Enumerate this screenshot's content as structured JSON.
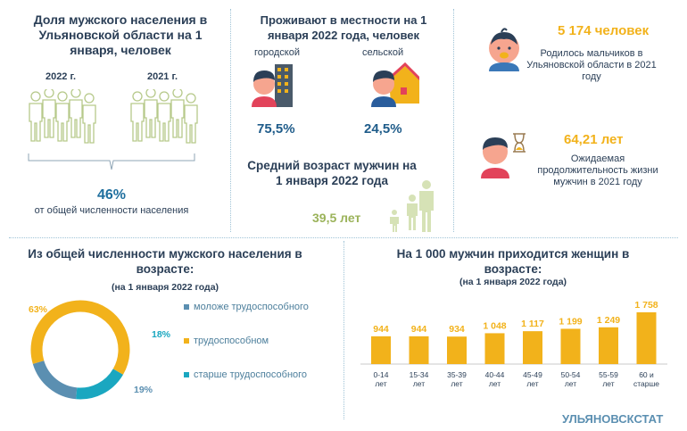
{
  "panel1": {
    "title": "Доля мужского населения в Ульяновской области на 1 января, человек",
    "year_a": "2022 г.",
    "year_b": "2021 г.",
    "percent": "46%",
    "caption": "от общей численности населения"
  },
  "panel2": {
    "title": "Проживают в местности на 1 января 2022 года,  человек",
    "urban_label": "городской",
    "rural_label": "сельской",
    "urban_value": "75,5%",
    "rural_value": "24,5%",
    "age_title": "Средний возраст мужчин на 1 января 2022 года",
    "age_value": "39,5 лет"
  },
  "panel3": {
    "births_value": "5 174 человек",
    "births_caption": "Родилось мальчиков в Ульяновской области в 2021 году",
    "life_value": "64,21 лет",
    "life_caption": "Ожидаемая продолжительность жизни мужчин в 2021 году"
  },
  "panel4": {
    "title": "Из общей численности мужского населения в возрасте:",
    "subtitle": "(на 1 января 2022 года)"
  },
  "panel5": {
    "title": "На 1 000 мужчин приходится женщин в возрасте:",
    "subtitle": "(на 1 января 2022 года)"
  },
  "footer": {
    "brand": "УЛЬЯНОВСКСТАТ"
  },
  "colors": {
    "accent_orange": "#f2b21b",
    "accent_teal": "#1aa7c0",
    "accent_steel": "#5b8fb1",
    "green": "#9bb35a",
    "navy": "#2b3f57"
  },
  "chart_data": [
    {
      "type": "pie",
      "donut": true,
      "labels": [
        "моложе трудоспособного",
        "трудоспособном",
        "старше трудоспособного"
      ],
      "values": [
        19,
        63,
        18
      ],
      "value_labels": [
        "19%",
        "63%",
        "18%"
      ],
      "colors": [
        "#5b8fb1",
        "#f2b21b",
        "#1aa7c0"
      ],
      "legend": "right"
    },
    {
      "type": "bar",
      "categories": [
        "0-14 лет",
        "15-34 лет",
        "35-39 лет",
        "40-44 лет",
        "45-49 лет",
        "50-54 лет",
        "55-59 лет",
        "60 и старше"
      ],
      "values": [
        944,
        944,
        934,
        1048,
        1117,
        1199,
        1249,
        1758
      ],
      "value_labels": [
        "944",
        "944",
        "934",
        "1 048",
        "1 117",
        "1 199",
        "1 249",
        "1 758"
      ],
      "color": "#f2b21b"
    }
  ]
}
